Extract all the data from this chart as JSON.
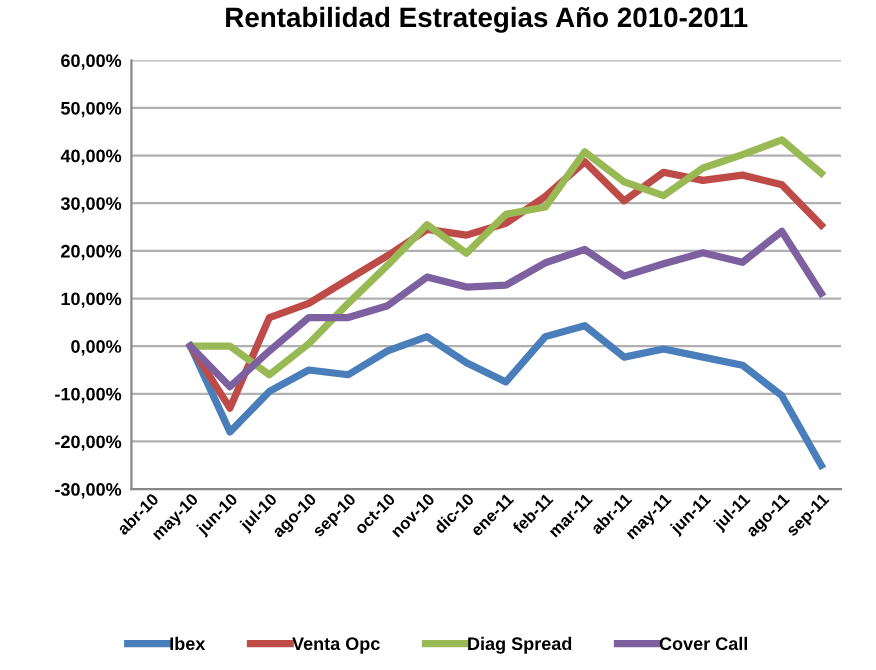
{
  "chart_data": {
    "type": "line",
    "title": "Rentabilidad Estrategias Año 2010-2011",
    "categories": [
      "abr-10",
      "may-10",
      "jun-10",
      "jul-10",
      "ago-10",
      "sep-10",
      "oct-10",
      "nov-10",
      "dic-10",
      "ene-11",
      "feb-11",
      "mar-11",
      "abr-11",
      "may-11",
      "jun-11",
      "jul-11",
      "ago-11",
      "sep-11"
    ],
    "series": [
      {
        "name": "Ibex",
        "color": "#4a7ebb",
        "values": [
          null,
          0,
          -18,
          -9.5,
          -5,
          -6,
          -1,
          2,
          -3.5,
          -7.5,
          2,
          4.3,
          -2.3,
          -0.6,
          -2.3,
          -4,
          -10.4,
          -25
        ]
      },
      {
        "name": "Venta Opc",
        "color": "#be4b48",
        "values": [
          null,
          0,
          -13,
          6,
          9,
          14,
          19,
          24.5,
          23.3,
          25.8,
          31.4,
          38.7,
          30.5,
          36.5,
          34.8,
          35.9,
          33.9,
          25.4
        ]
      },
      {
        "name": "Diag Spread",
        "color": "#98b954",
        "values": [
          null,
          0,
          0,
          -6,
          0.5,
          9,
          17,
          25.5,
          19.5,
          27.7,
          29.2,
          40.8,
          34.5,
          31.6,
          37.4,
          40.2,
          43.3,
          36.3
        ]
      },
      {
        "name": "Cover Call",
        "color": "#7d60a0",
        "values": [
          null,
          0,
          -8.5,
          -1,
          6,
          6,
          8.5,
          14.5,
          12.4,
          12.8,
          17.5,
          20.3,
          14.7,
          17.3,
          19.6,
          17.6,
          24.1,
          11.1
        ]
      }
    ],
    "ylim": [
      -30,
      60
    ],
    "yticks": [
      {
        "value": -30,
        "label": "-30,00%"
      },
      {
        "value": -20,
        "label": "-20,00%"
      },
      {
        "value": -10,
        "label": "-10,00%"
      },
      {
        "value": 0,
        "label": "0,00%"
      },
      {
        "value": 10,
        "label": "10,00%"
      },
      {
        "value": 20,
        "label": "20,00%"
      },
      {
        "value": 30,
        "label": "30,00%"
      },
      {
        "value": 40,
        "label": "40,00%"
      },
      {
        "value": 50,
        "label": "50,00%"
      },
      {
        "value": 60,
        "label": "60,00%"
      }
    ],
    "grid": "y",
    "legend": "bottom",
    "marker": "none",
    "line_style": "solid"
  }
}
